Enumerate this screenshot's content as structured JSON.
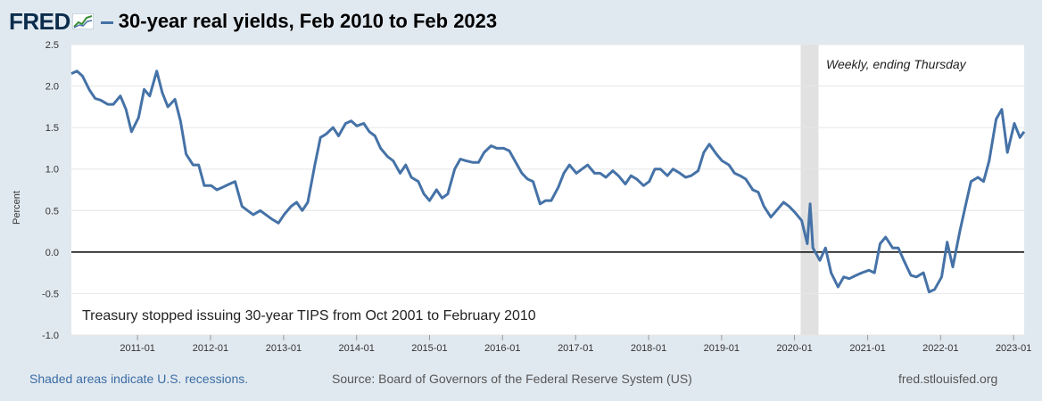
{
  "header": {
    "logo_text": "FRED",
    "title": "30-year real yields, Feb 2010 to Feb 2023"
  },
  "footer": {
    "recession_note": "Shaded areas indicate U.S. recessions.",
    "source": "Source: Board of Governors of the Federal Reserve System (US)",
    "site": "fred.stlouisfed.org"
  },
  "colors": {
    "line": "#4572a7",
    "recession": "#e1e1e1",
    "zero_line": "#000000",
    "grid": "#e6e6e6",
    "brand": "#0b2c4b"
  },
  "chart_data": {
    "type": "line",
    "ylabel": "Percent",
    "ylim": [
      -1.0,
      2.5
    ],
    "yticks": [
      "2.5",
      "2.0",
      "1.5",
      "1.0",
      "0.5",
      "0.0",
      "-0.5",
      "-1.0"
    ],
    "xlim": [
      "2010-02-04",
      "2023-02-23"
    ],
    "xticks": [
      "2011-01",
      "2012-01",
      "2013-01",
      "2014-01",
      "2015-01",
      "2016-01",
      "2017-01",
      "2018-01",
      "2019-01",
      "2020-01",
      "2021-01",
      "2022-01",
      "2023-01"
    ],
    "grid": true,
    "annotations": [
      "Weekly, ending Thursday",
      "Treasury stopped issuing 30-year TIPS from Oct 2001 to February 2010"
    ],
    "recessions": [
      {
        "start": "2020-02-01",
        "end": "2020-04-30"
      }
    ],
    "reference_line": 0.0,
    "series": [
      {
        "points": [
          [
            "2010-02-04",
            2.15
          ],
          [
            "2010-03-04",
            2.18
          ],
          [
            "2010-04-01",
            2.12
          ],
          [
            "2010-05-06",
            1.95
          ],
          [
            "2010-06-03",
            1.85
          ],
          [
            "2010-07-01",
            1.83
          ],
          [
            "2010-08-05",
            1.78
          ],
          [
            "2010-09-02",
            1.78
          ],
          [
            "2010-10-07",
            1.88
          ],
          [
            "2010-11-04",
            1.72
          ],
          [
            "2010-12-02",
            1.45
          ],
          [
            "2011-01-06",
            1.62
          ],
          [
            "2011-02-03",
            1.96
          ],
          [
            "2011-03-03",
            1.88
          ],
          [
            "2011-04-07",
            2.18
          ],
          [
            "2011-05-05",
            1.92
          ],
          [
            "2011-06-02",
            1.75
          ],
          [
            "2011-07-07",
            1.84
          ],
          [
            "2011-08-04",
            1.58
          ],
          [
            "2011-09-01",
            1.18
          ],
          [
            "2011-10-06",
            1.05
          ],
          [
            "2011-11-03",
            1.05
          ],
          [
            "2011-12-01",
            0.8
          ],
          [
            "2012-01-05",
            0.8
          ],
          [
            "2012-02-02",
            0.75
          ],
          [
            "2012-03-01",
            0.78
          ],
          [
            "2012-04-05",
            0.82
          ],
          [
            "2012-05-03",
            0.85
          ],
          [
            "2012-06-07",
            0.55
          ],
          [
            "2012-07-05",
            0.5
          ],
          [
            "2012-08-02",
            0.45
          ],
          [
            "2012-09-06",
            0.5
          ],
          [
            "2012-10-04",
            0.45
          ],
          [
            "2012-11-01",
            0.4
          ],
          [
            "2012-12-06",
            0.35
          ],
          [
            "2013-01-03",
            0.45
          ],
          [
            "2013-02-07",
            0.55
          ],
          [
            "2013-03-07",
            0.6
          ],
          [
            "2013-04-04",
            0.5
          ],
          [
            "2013-05-02",
            0.6
          ],
          [
            "2013-06-06",
            1.05
          ],
          [
            "2013-07-04",
            1.38
          ],
          [
            "2013-08-01",
            1.42
          ],
          [
            "2013-09-05",
            1.5
          ],
          [
            "2013-10-03",
            1.4
          ],
          [
            "2013-11-07",
            1.55
          ],
          [
            "2013-12-05",
            1.58
          ],
          [
            "2014-01-02",
            1.52
          ],
          [
            "2014-02-06",
            1.55
          ],
          [
            "2014-03-06",
            1.45
          ],
          [
            "2014-04-03",
            1.4
          ],
          [
            "2014-05-01",
            1.25
          ],
          [
            "2014-06-05",
            1.15
          ],
          [
            "2014-07-03",
            1.1
          ],
          [
            "2014-08-07",
            0.95
          ],
          [
            "2014-09-04",
            1.05
          ],
          [
            "2014-10-02",
            0.9
          ],
          [
            "2014-11-06",
            0.85
          ],
          [
            "2014-12-04",
            0.7
          ],
          [
            "2015-01-01",
            0.62
          ],
          [
            "2015-02-05",
            0.75
          ],
          [
            "2015-03-05",
            0.65
          ],
          [
            "2015-04-02",
            0.7
          ],
          [
            "2015-05-07",
            1.0
          ],
          [
            "2015-06-04",
            1.12
          ],
          [
            "2015-07-02",
            1.1
          ],
          [
            "2015-08-06",
            1.08
          ],
          [
            "2015-09-03",
            1.08
          ],
          [
            "2015-10-01",
            1.2
          ],
          [
            "2015-11-05",
            1.28
          ],
          [
            "2015-12-03",
            1.25
          ],
          [
            "2016-01-07",
            1.25
          ],
          [
            "2016-02-04",
            1.22
          ],
          [
            "2016-03-03",
            1.1
          ],
          [
            "2016-04-07",
            0.95
          ],
          [
            "2016-05-05",
            0.88
          ],
          [
            "2016-06-02",
            0.85
          ],
          [
            "2016-07-07",
            0.58
          ],
          [
            "2016-08-04",
            0.62
          ],
          [
            "2016-09-01",
            0.62
          ],
          [
            "2016-10-06",
            0.78
          ],
          [
            "2016-11-03",
            0.95
          ],
          [
            "2016-12-01",
            1.05
          ],
          [
            "2017-01-05",
            0.95
          ],
          [
            "2017-02-02",
            1.0
          ],
          [
            "2017-03-02",
            1.05
          ],
          [
            "2017-04-06",
            0.95
          ],
          [
            "2017-05-04",
            0.95
          ],
          [
            "2017-06-01",
            0.9
          ],
          [
            "2017-07-06",
            0.98
          ],
          [
            "2017-08-03",
            0.92
          ],
          [
            "2017-09-07",
            0.82
          ],
          [
            "2017-10-05",
            0.92
          ],
          [
            "2017-11-02",
            0.88
          ],
          [
            "2017-12-07",
            0.8
          ],
          [
            "2018-01-04",
            0.85
          ],
          [
            "2018-02-01",
            1.0
          ],
          [
            "2018-03-01",
            1.0
          ],
          [
            "2018-04-05",
            0.92
          ],
          [
            "2018-05-03",
            1.0
          ],
          [
            "2018-06-07",
            0.95
          ],
          [
            "2018-07-05",
            0.9
          ],
          [
            "2018-08-02",
            0.92
          ],
          [
            "2018-09-06",
            0.98
          ],
          [
            "2018-10-04",
            1.2
          ],
          [
            "2018-11-01",
            1.3
          ],
          [
            "2018-12-06",
            1.18
          ],
          [
            "2019-01-03",
            1.1
          ],
          [
            "2019-02-07",
            1.05
          ],
          [
            "2019-03-07",
            0.95
          ],
          [
            "2019-04-04",
            0.92
          ],
          [
            "2019-05-02",
            0.88
          ],
          [
            "2019-06-06",
            0.75
          ],
          [
            "2019-07-04",
            0.72
          ],
          [
            "2019-08-01",
            0.55
          ],
          [
            "2019-09-05",
            0.42
          ],
          [
            "2019-10-03",
            0.5
          ],
          [
            "2019-11-07",
            0.6
          ],
          [
            "2019-12-05",
            0.55
          ],
          [
            "2020-01-02",
            0.48
          ],
          [
            "2020-02-06",
            0.38
          ],
          [
            "2020-03-05",
            0.1
          ],
          [
            "2020-03-19",
            0.58
          ],
          [
            "2020-04-02",
            0.05
          ],
          [
            "2020-05-07",
            -0.1
          ],
          [
            "2020-06-04",
            0.05
          ],
          [
            "2020-07-02",
            -0.25
          ],
          [
            "2020-08-06",
            -0.42
          ],
          [
            "2020-09-03",
            -0.3
          ],
          [
            "2020-10-01",
            -0.32
          ],
          [
            "2020-11-05",
            -0.28
          ],
          [
            "2020-12-03",
            -0.25
          ],
          [
            "2021-01-07",
            -0.22
          ],
          [
            "2021-02-04",
            -0.25
          ],
          [
            "2021-03-04",
            0.1
          ],
          [
            "2021-04-01",
            0.18
          ],
          [
            "2021-05-06",
            0.05
          ],
          [
            "2021-06-03",
            0.05
          ],
          [
            "2021-07-01",
            -0.1
          ],
          [
            "2021-08-05",
            -0.28
          ],
          [
            "2021-09-02",
            -0.3
          ],
          [
            "2021-10-07",
            -0.25
          ],
          [
            "2021-11-04",
            -0.48
          ],
          [
            "2021-12-02",
            -0.45
          ],
          [
            "2022-01-06",
            -0.3
          ],
          [
            "2022-02-03",
            0.12
          ],
          [
            "2022-03-03",
            -0.18
          ],
          [
            "2022-04-07",
            0.25
          ],
          [
            "2022-05-05",
            0.55
          ],
          [
            "2022-06-02",
            0.85
          ],
          [
            "2022-07-07",
            0.9
          ],
          [
            "2022-08-04",
            0.85
          ],
          [
            "2022-09-01",
            1.1
          ],
          [
            "2022-10-06",
            1.6
          ],
          [
            "2022-11-03",
            1.72
          ],
          [
            "2022-12-01",
            1.2
          ],
          [
            "2023-01-05",
            1.55
          ],
          [
            "2023-02-02",
            1.38
          ],
          [
            "2023-02-23",
            1.45
          ]
        ]
      }
    ]
  }
}
